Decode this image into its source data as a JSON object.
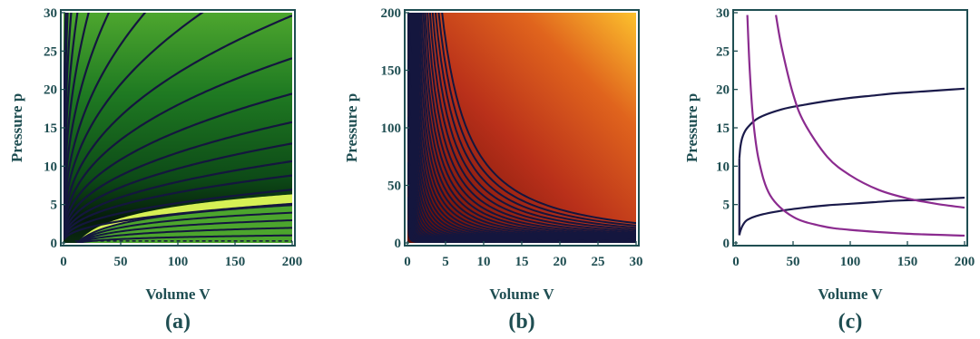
{
  "panels": [
    {
      "label": "(a)",
      "xlabel": "Volume V",
      "ylabel": "Pressure p",
      "xticks": [
        "0",
        "50",
        "100",
        "150",
        "200"
      ],
      "yticks": [
        "0",
        "5",
        "10",
        "15",
        "20",
        "25",
        "30"
      ]
    },
    {
      "label": "(b)",
      "xlabel": "Volume V",
      "ylabel": "Pressure p",
      "xticks": [
        "0",
        "5",
        "10",
        "15",
        "20",
        "25",
        "30"
      ],
      "yticks": [
        "0",
        "50",
        "100",
        "150",
        "200"
      ]
    },
    {
      "label": "(c)",
      "xlabel": "Volume V",
      "ylabel": "Pressure p",
      "xticks": [
        "0",
        "50",
        "100",
        "150",
        "200"
      ],
      "yticks": [
        "0",
        "5",
        "10",
        "15",
        "20",
        "25",
        "30"
      ]
    }
  ],
  "chart_data": [
    {
      "type": "heatmap",
      "subtype": "contour",
      "xlim": [
        0,
        200
      ],
      "ylim": [
        0,
        30
      ],
      "grid": false,
      "colors": {
        "dark": "#061a0c",
        "mid": "#1f7a22",
        "light": "#4ca52d",
        "band": "#d6f055",
        "contour": "#14163e"
      },
      "contour_family_above": {
        "form": "p = k * V^0.42",
        "k_values": [
          0.55,
          0.75,
          0.95,
          1.15,
          1.4,
          1.7,
          2.1,
          2.6,
          3.2,
          4.0,
          5.0,
          6.4,
          8.2,
          10.5,
          13.5,
          17.5,
          23.0
        ]
      },
      "contour_family_below": {
        "form": "p = k * ln(V/12)",
        "k_values": [
          0.35,
          0.7,
          1.05,
          1.4,
          1.75
        ]
      },
      "highlight_band": {
        "form": "p = k * ln(V/12)",
        "k_range": [
          1.75,
          2.25
        ]
      }
    },
    {
      "type": "heatmap",
      "subtype": "contour",
      "xlim": [
        0,
        30
      ],
      "ylim": [
        0,
        200
      ],
      "grid": false,
      "colors": {
        "low": "#6a0d06",
        "mid": "#c0401a",
        "high": "#fbbd2a",
        "contour": "#14163e"
      },
      "contour_family": {
        "form": "p = c / V^1.3",
        "c_values": [
          1,
          2,
          3.5,
          5.5,
          8,
          11,
          15,
          20,
          26,
          34,
          44,
          56,
          70,
          87,
          107,
          130,
          157,
          188,
          225,
          268,
          318,
          375,
          440,
          515,
          600,
          700,
          815,
          945,
          1090,
          1250,
          1430
        ]
      }
    },
    {
      "type": "line",
      "xlim": [
        0,
        200
      ],
      "ylim": [
        0,
        30
      ],
      "grid": false,
      "series": [
        {
          "color": "#1a1a4a",
          "points": [
            [
              3,
              11
            ],
            [
              4,
              12.6
            ],
            [
              6,
              13.9
            ],
            [
              10,
              15.0
            ],
            [
              20,
              16.3
            ],
            [
              40,
              17.4
            ],
            [
              60,
              18.0
            ],
            [
              80,
              18.5
            ],
            [
              100,
              18.9
            ],
            [
              120,
              19.2
            ],
            [
              140,
              19.5
            ],
            [
              160,
              19.7
            ],
            [
              180,
              19.9
            ],
            [
              200,
              20.1
            ]
          ]
        },
        {
          "color": "#1a1a4a",
          "points": [
            [
              3,
              1
            ],
            [
              4,
              1.6
            ],
            [
              6,
              2.3
            ],
            [
              10,
              3.0
            ],
            [
              20,
              3.6
            ],
            [
              40,
              4.2
            ],
            [
              60,
              4.6
            ],
            [
              80,
              4.9
            ],
            [
              100,
              5.1
            ],
            [
              120,
              5.3
            ],
            [
              140,
              5.5
            ],
            [
              160,
              5.6
            ],
            [
              180,
              5.75
            ],
            [
              200,
              5.9
            ]
          ]
        },
        {
          "color": "#8b2b8f",
          "points": [
            [
              10,
              29.7
            ],
            [
              12,
              22.8
            ],
            [
              15,
              16.2
            ],
            [
              20,
              10.8
            ],
            [
              30,
              6.2
            ],
            [
              50,
              3.4
            ],
            [
              75,
              2.2
            ],
            [
              100,
              1.7
            ],
            [
              150,
              1.2
            ],
            [
              200,
              0.95
            ]
          ]
        },
        {
          "color": "#8b2b8f",
          "points": [
            [
              35,
              29.7
            ],
            [
              40,
              25.5
            ],
            [
              50,
              19.4
            ],
            [
              60,
              15.6
            ],
            [
              80,
              11.2
            ],
            [
              100,
              8.8
            ],
            [
              125,
              6.9
            ],
            [
              150,
              5.8
            ],
            [
              175,
              5.1
            ],
            [
              200,
              4.6
            ]
          ]
        }
      ]
    }
  ]
}
